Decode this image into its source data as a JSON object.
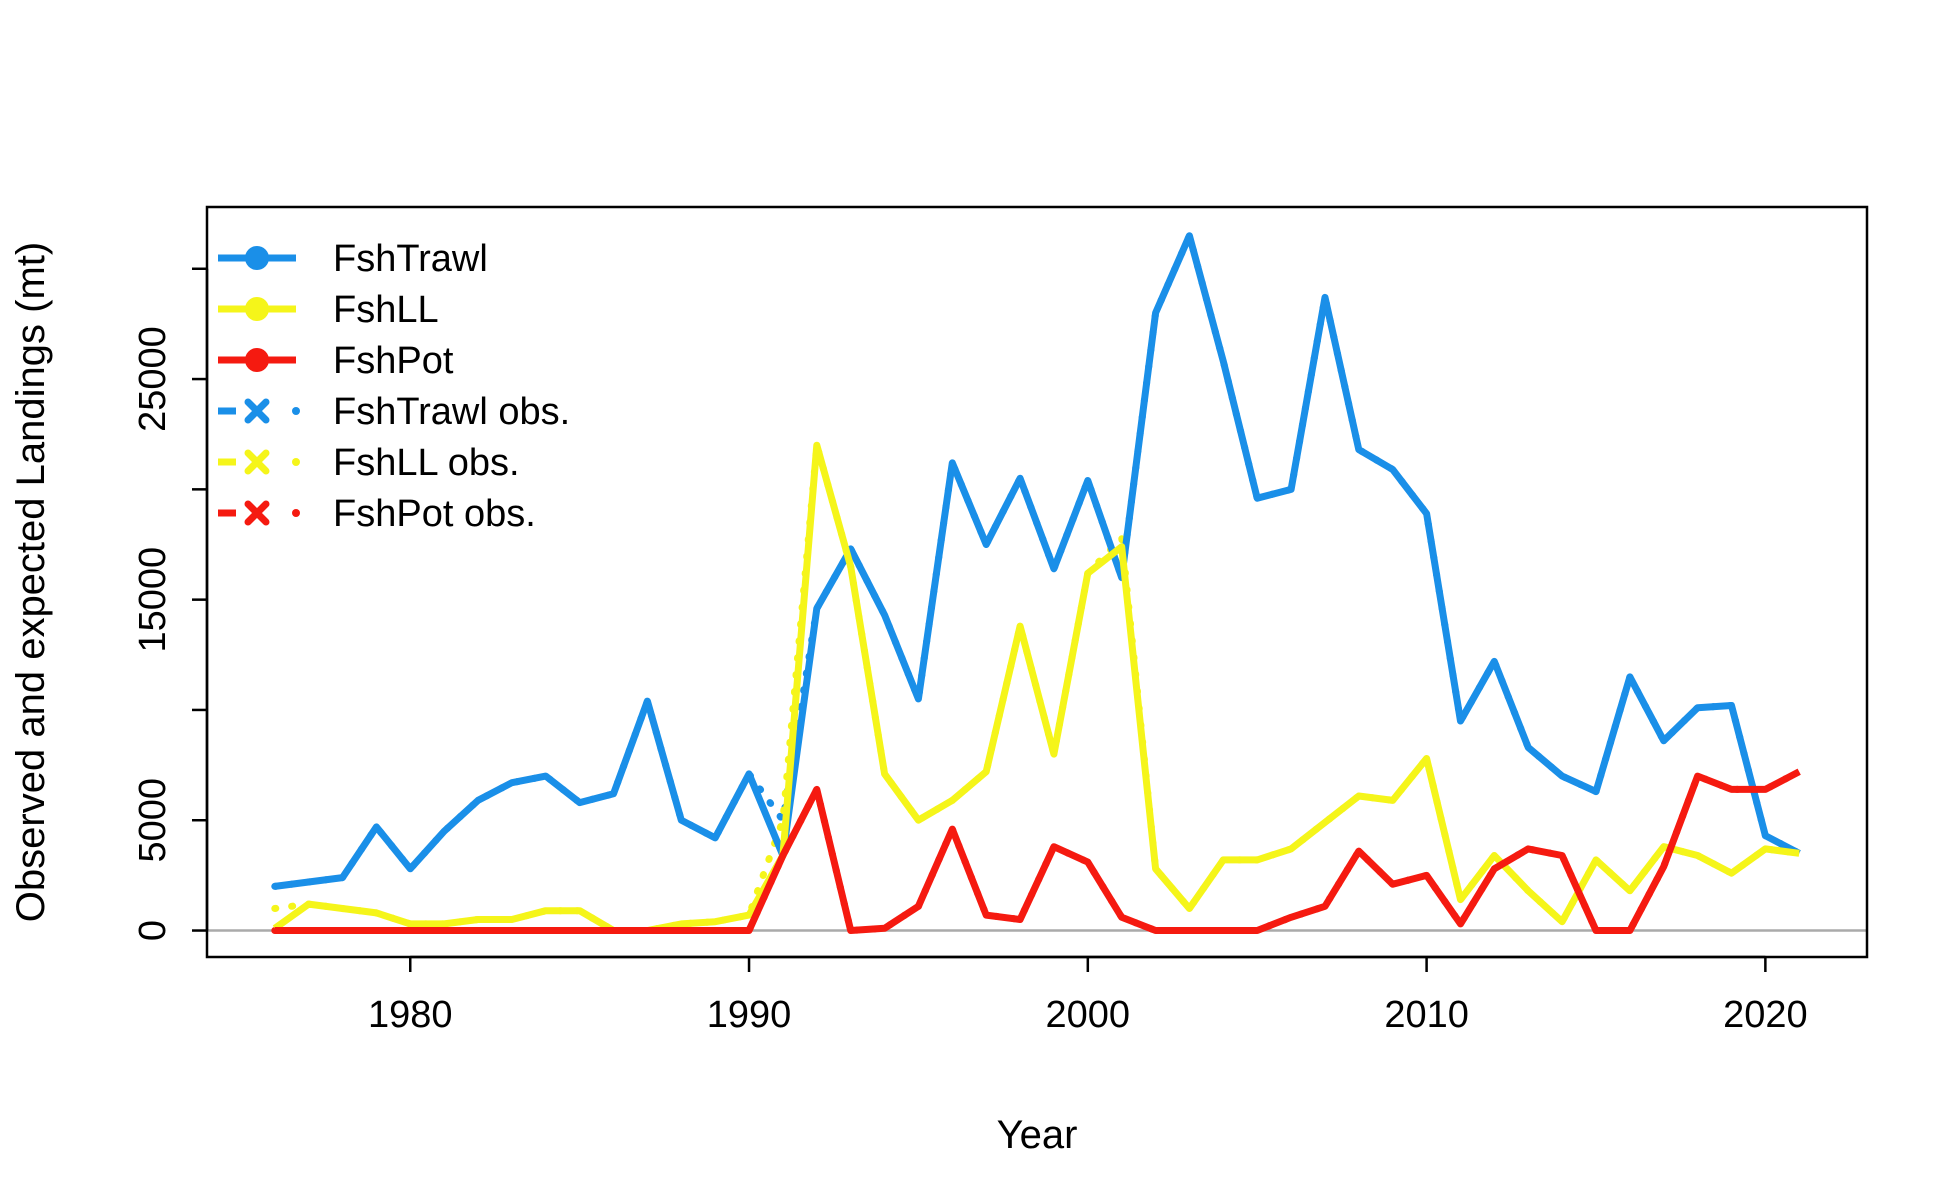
{
  "chart_data": {
    "type": "line",
    "xlabel": "Year",
    "ylabel": "Observed and expected Landings (mt)",
    "xlim": [
      1974,
      2023
    ],
    "ylim": [
      -1200,
      32800
    ],
    "x_ticks": [
      1980,
      1990,
      2000,
      2010,
      2020
    ],
    "x_tick_labels": [
      "1980",
      "1990",
      "2000",
      "2010",
      "2020"
    ],
    "y_ticks": [
      0,
      5000,
      10000,
      15000,
      20000,
      25000,
      30000
    ],
    "y_tick_labels": [
      "0",
      "5000",
      "",
      "15000",
      "",
      "25000",
      ""
    ],
    "reference_line": 0,
    "grid": false,
    "legend_position": "top-left",
    "x": [
      1976,
      1977,
      1978,
      1979,
      1980,
      1981,
      1982,
      1983,
      1984,
      1985,
      1986,
      1987,
      1988,
      1989,
      1990,
      1991,
      1992,
      1993,
      1994,
      1995,
      1996,
      1997,
      1998,
      1999,
      2000,
      2001,
      2002,
      2003,
      2004,
      2005,
      2006,
      2007,
      2008,
      2009,
      2010,
      2011,
      2012,
      2013,
      2014,
      2015,
      2016,
      2017,
      2018,
      2019,
      2020,
      2021
    ],
    "series": [
      {
        "name": "FshTrawl",
        "color": "#1a8fe8",
        "style": "solid",
        "values": [
          2000,
          2200,
          2400,
          4700,
          2800,
          4500,
          5900,
          6700,
          7000,
          5800,
          6200,
          10400,
          5000,
          4200,
          7100,
          3400,
          14600,
          17300,
          14300,
          10500,
          21200,
          17500,
          20500,
          16400,
          20400,
          16000,
          28000,
          31500,
          25800,
          19600,
          20000,
          28700,
          21800,
          20900,
          18900,
          9500,
          12200,
          8300,
          7000,
          6300,
          11500,
          8600,
          10100,
          10200,
          4300,
          3500
        ]
      },
      {
        "name": "FshLL",
        "color": "#f5f51a",
        "style": "solid",
        "values": [
          100,
          1200,
          1000,
          800,
          300,
          300,
          500,
          500,
          900,
          900,
          0,
          0,
          300,
          400,
          700,
          3400,
          22000,
          16500,
          7100,
          5000,
          5900,
          7200,
          13800,
          8000,
          16200,
          17400,
          2800,
          1000,
          3200,
          3200,
          3700,
          4900,
          6100,
          5900,
          7800,
          1400,
          3400,
          1800,
          400,
          3200,
          1800,
          3800,
          3400,
          2600,
          3700,
          3500
        ]
      },
      {
        "name": "FshPot",
        "color": "#f51a10",
        "style": "solid",
        "values": [
          0,
          0,
          0,
          0,
          0,
          0,
          0,
          0,
          0,
          0,
          0,
          0,
          0,
          0,
          0,
          3400,
          6400,
          0,
          100,
          1100,
          4600,
          700,
          500,
          3800,
          3100,
          600,
          0,
          0,
          0,
          0,
          600,
          1100,
          3600,
          2100,
          2500,
          300,
          2800,
          3700,
          3400,
          0,
          0,
          2900,
          7000,
          6400,
          6400,
          7200
        ]
      },
      {
        "name": "FshTrawl obs.",
        "color": "#1a8fe8",
        "style": "dotted",
        "values": [
          2000,
          2200,
          2400,
          4700,
          2800,
          4500,
          5900,
          6700,
          7000,
          5800,
          6200,
          10400,
          5000,
          4200,
          7100,
          5000,
          14600,
          17300,
          14300,
          10500,
          21200,
          17500,
          20500,
          16400,
          20400,
          16000,
          28000,
          31500,
          25800,
          19600,
          20000,
          28700,
          21800,
          20900,
          18900,
          9500,
          12200,
          8300,
          7000,
          6300,
          11500,
          8600,
          10100,
          10200,
          4300,
          3500
        ]
      },
      {
        "name": "FshLL obs.",
        "color": "#f5f51a",
        "style": "dotted",
        "values": [
          1000,
          1200,
          1000,
          800,
          300,
          300,
          500,
          500,
          900,
          900,
          0,
          0,
          300,
          400,
          700,
          5000,
          22000,
          16500,
          7100,
          5000,
          5900,
          7200,
          13800,
          8000,
          16200,
          17800,
          2800,
          1000,
          3200,
          3200,
          3700,
          4900,
          6100,
          5900,
          7800,
          1400,
          3400,
          1800,
          400,
          3200,
          1800,
          3800,
          3400,
          2600,
          3700,
          3500
        ]
      },
      {
        "name": "FshPot obs.",
        "color": "#f51a10",
        "style": "dotted",
        "values": [
          0,
          0,
          0,
          0,
          0,
          0,
          0,
          0,
          0,
          0,
          0,
          0,
          0,
          0,
          0,
          3400,
          6400,
          0,
          100,
          1100,
          4600,
          700,
          500,
          3800,
          3100,
          600,
          0,
          0,
          0,
          0,
          600,
          1100,
          3600,
          2100,
          2500,
          300,
          2800,
          3700,
          3400,
          0,
          0,
          2900,
          7000,
          6400,
          6400,
          7200
        ]
      }
    ]
  }
}
